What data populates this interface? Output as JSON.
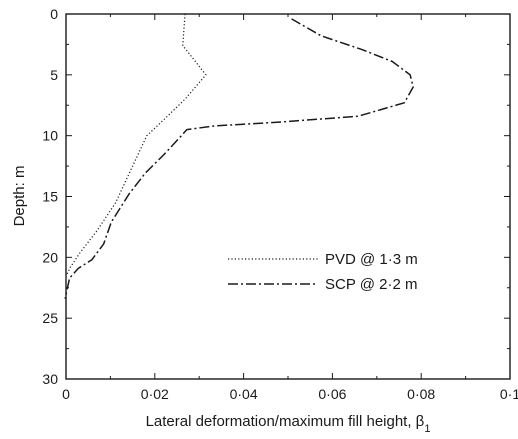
{
  "chart_data": {
    "type": "line",
    "xlabel": "Lateral deformation/maximum fill height, β",
    "xlabel_subscript": "1",
    "ylabel": "Depth: m",
    "xlim": [
      0,
      0.1
    ],
    "ylim": [
      0,
      30
    ],
    "y_inverted": true,
    "x_tick_labels": [
      "0",
      "0·02",
      "0·04",
      "0·06",
      "0·08",
      "0·1"
    ],
    "x_tick_values": [
      0,
      0.02,
      0.04,
      0.06,
      0.08,
      0.1
    ],
    "y_tick_labels": [
      "0",
      "5",
      "10",
      "15",
      "20",
      "25",
      "30"
    ],
    "y_tick_values": [
      0,
      5,
      10,
      15,
      20,
      25,
      30
    ],
    "grid": false,
    "legend_position": "center-right",
    "series": [
      {
        "name": "PVD @ 1·3 m",
        "style": "dotted",
        "color": "#1a1a1a",
        "points": [
          [
            0.0268,
            0
          ],
          [
            0.0263,
            2.6
          ],
          [
            0.0315,
            5.0
          ],
          [
            0.0268,
            7.0
          ],
          [
            0.022,
            8.7
          ],
          [
            0.0182,
            10.0
          ],
          [
            0.015,
            12.5
          ],
          [
            0.0112,
            15.5
          ],
          [
            0.007,
            17.8
          ],
          [
            0.0032,
            19.6
          ],
          [
            0.001,
            20.8
          ],
          [
            0.0001,
            21.5
          ]
        ]
      },
      {
        "name": "SCP @ 2·2 m",
        "style": "dash-dot",
        "color": "#1a1a1a",
        "points": [
          [
            0.0508,
            0.4
          ],
          [
            0.0575,
            1.8
          ],
          [
            0.0665,
            2.9
          ],
          [
            0.0735,
            3.9
          ],
          [
            0.0775,
            5.0
          ],
          [
            0.0782,
            6.0
          ],
          [
            0.0762,
            7.3
          ],
          [
            0.0658,
            8.4
          ],
          [
            0.0475,
            8.9
          ],
          [
            0.0335,
            9.2
          ],
          [
            0.0272,
            9.5
          ],
          [
            0.0255,
            10.2
          ],
          [
            0.0222,
            11.5
          ],
          [
            0.0178,
            13.1
          ],
          [
            0.0142,
            14.8
          ],
          [
            0.0102,
            17.1
          ],
          [
            0.0085,
            18.9
          ],
          [
            0.0058,
            20.2
          ],
          [
            0.0028,
            20.9
          ],
          [
            0.0008,
            21.7
          ],
          [
            -0.0002,
            23.4
          ]
        ]
      }
    ]
  }
}
